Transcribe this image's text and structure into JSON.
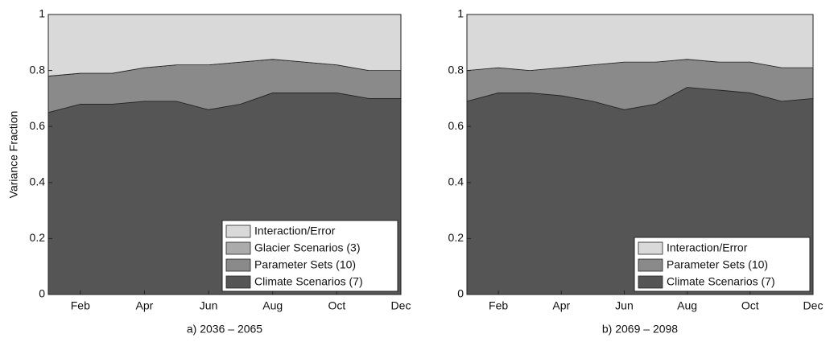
{
  "chart_data": [
    {
      "type": "stacked_area",
      "title": "a) 2036 – 2065",
      "ylabel": "Variance Fraction",
      "categories": [
        null,
        "Feb",
        null,
        "Apr",
        null,
        "Jun",
        null,
        "Aug",
        null,
        "Oct",
        null,
        "Dec"
      ],
      "ylim": [
        0,
        1
      ],
      "yticks": [
        0,
        0.2,
        0.4,
        0.6,
        0.8,
        1
      ],
      "legend": "lower right",
      "series": [
        {
          "name": "Climate Scenarios (7)",
          "color": "#555555",
          "values": [
            0.65,
            0.68,
            0.68,
            0.69,
            0.69,
            0.66,
            0.68,
            0.72,
            0.72,
            0.72,
            0.7,
            0.7
          ]
        },
        {
          "name": "Parameter Sets (10)",
          "color": "#8a8a8a",
          "values": [
            0.13,
            0.11,
            0.11,
            0.12,
            0.13,
            0.16,
            0.15,
            0.12,
            0.11,
            0.1,
            0.1,
            0.1
          ]
        },
        {
          "name": "Glacier Scenarios (3)",
          "color": "#ababab",
          "values": [
            0,
            0,
            0,
            0,
            0,
            0,
            0,
            0,
            0,
            0,
            0,
            0
          ]
        },
        {
          "name": "Interaction/Error",
          "color": "#d9d9d9",
          "values": [
            0.22,
            0.21,
            0.21,
            0.19,
            0.18,
            0.18,
            0.17,
            0.16,
            0.17,
            0.18,
            0.2,
            0.2
          ]
        }
      ]
    },
    {
      "type": "stacked_area",
      "title": "b) 2069 – 2098",
      "categories": [
        null,
        "Feb",
        null,
        "Apr",
        null,
        "Jun",
        null,
        "Aug",
        null,
        "Oct",
        null,
        "Dec"
      ],
      "ylim": [
        0,
        1
      ],
      "yticks": [
        0,
        0.2,
        0.4,
        0.6,
        0.8,
        1
      ],
      "legend": "lower right",
      "series": [
        {
          "name": "Climate Scenarios (7)",
          "color": "#555555",
          "values": [
            0.69,
            0.72,
            0.72,
            0.71,
            0.69,
            0.66,
            0.68,
            0.74,
            0.73,
            0.72,
            0.69,
            0.7
          ]
        },
        {
          "name": "Parameter Sets (10)",
          "color": "#8a8a8a",
          "values": [
            0.11,
            0.09,
            0.08,
            0.1,
            0.13,
            0.17,
            0.15,
            0.1,
            0.1,
            0.11,
            0.12,
            0.11
          ]
        },
        {
          "name": "Interaction/Error",
          "color": "#d9d9d9",
          "values": [
            0.2,
            0.19,
            0.2,
            0.19,
            0.18,
            0.17,
            0.17,
            0.16,
            0.17,
            0.17,
            0.19,
            0.19
          ]
        }
      ]
    }
  ]
}
